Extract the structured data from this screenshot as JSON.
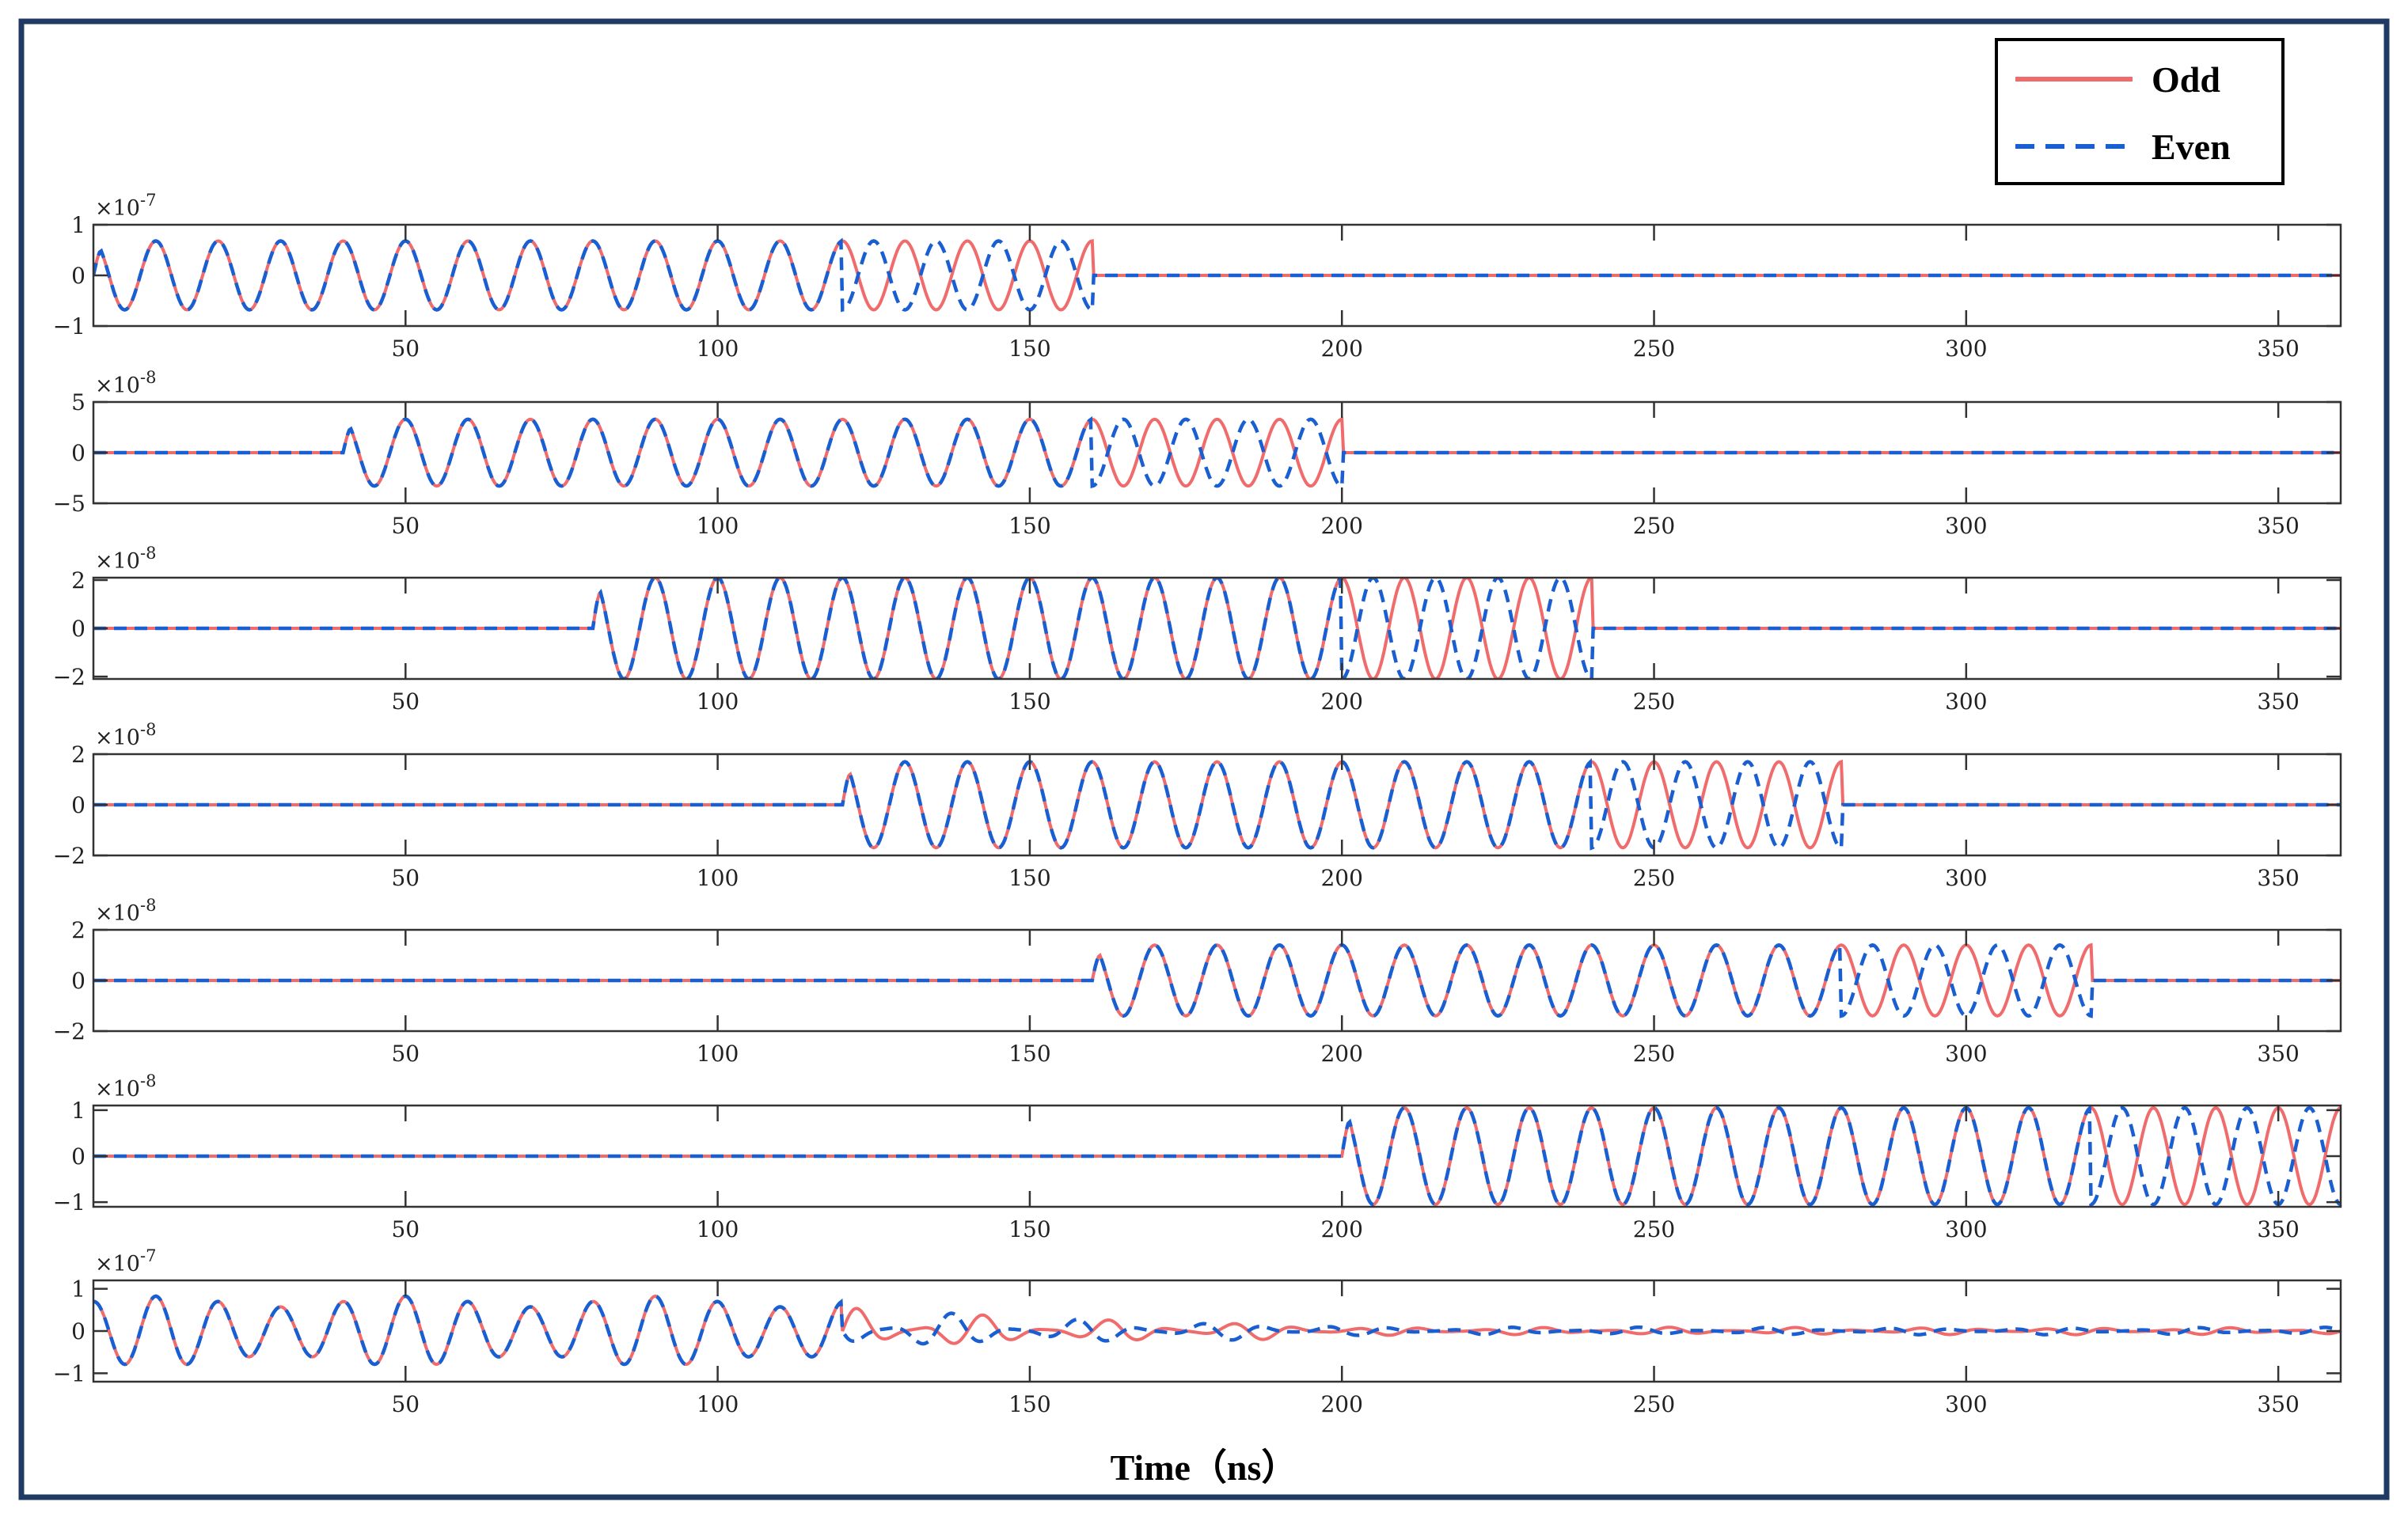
{
  "chart_data": {
    "type": "line",
    "xlabel": "Time（ns）",
    "xlim": [
      0,
      360
    ],
    "xticks": [
      50,
      100,
      150,
      200,
      250,
      300,
      350
    ],
    "legend": {
      "placement": "top-right",
      "entries": [
        {
          "name": "Odd",
          "color": "#f06b6b",
          "style": "solid"
        },
        {
          "name": "Even",
          "color": "#1a5fd1",
          "style": "dashed"
        }
      ]
    },
    "grid": false,
    "carrier_period_ns": 10,
    "panels": [
      {
        "exponent": "×10",
        "exponent_power": "-7",
        "ylim": [
          -1,
          1
        ],
        "yticks": [
          "1",
          "0",
          "−1"
        ],
        "amplitude": 0.68,
        "start": 0,
        "split": 120,
        "end": 160,
        "even_shift": 0.5
      },
      {
        "exponent": "×10",
        "exponent_power": "-8",
        "ylim": [
          -5,
          5
        ],
        "yticks": [
          "5",
          "0",
          "−5"
        ],
        "amplitude": 3.3,
        "start": 40,
        "split": 160,
        "end": 200,
        "even_shift": 0.5
      },
      {
        "exponent": "×10",
        "exponent_power": "-8",
        "ylim": [
          -2.1,
          2.1
        ],
        "yticks": [
          "2",
          "0",
          "−2"
        ],
        "amplitude": 2.1,
        "start": 80,
        "split": 200,
        "end": 240,
        "even_shift": 0.5
      },
      {
        "exponent": "×10",
        "exponent_power": "-8",
        "ylim": [
          -2,
          2
        ],
        "yticks": [
          "2",
          "0",
          "−2"
        ],
        "amplitude": 1.7,
        "start": 120,
        "split": 240,
        "end": 280,
        "even_shift": 0.5
      },
      {
        "exponent": "×10",
        "exponent_power": "-8",
        "ylim": [
          -2,
          2
        ],
        "yticks": [
          "2",
          "0",
          "−2"
        ],
        "amplitude": 1.4,
        "start": 160,
        "split": 280,
        "end": 320,
        "even_shift": 0.5
      },
      {
        "exponent": "×10",
        "exponent_power": "-8",
        "ylim": [
          -1.1,
          1.1
        ],
        "yticks": [
          "1",
          "0",
          "−1"
        ],
        "amplitude": 1.05,
        "start": 200,
        "split": 320,
        "end": 360,
        "even_shift": 0.5
      },
      {
        "exponent": "×10",
        "exponent_power": "-7",
        "ylim": [
          -1.2,
          1.2
        ],
        "yticks": [
          "1",
          "0",
          "−1"
        ],
        "amplitude": 0.7,
        "start": 0,
        "split": 120,
        "end": 360,
        "even_shift": 0.5,
        "composite": true
      }
    ]
  }
}
